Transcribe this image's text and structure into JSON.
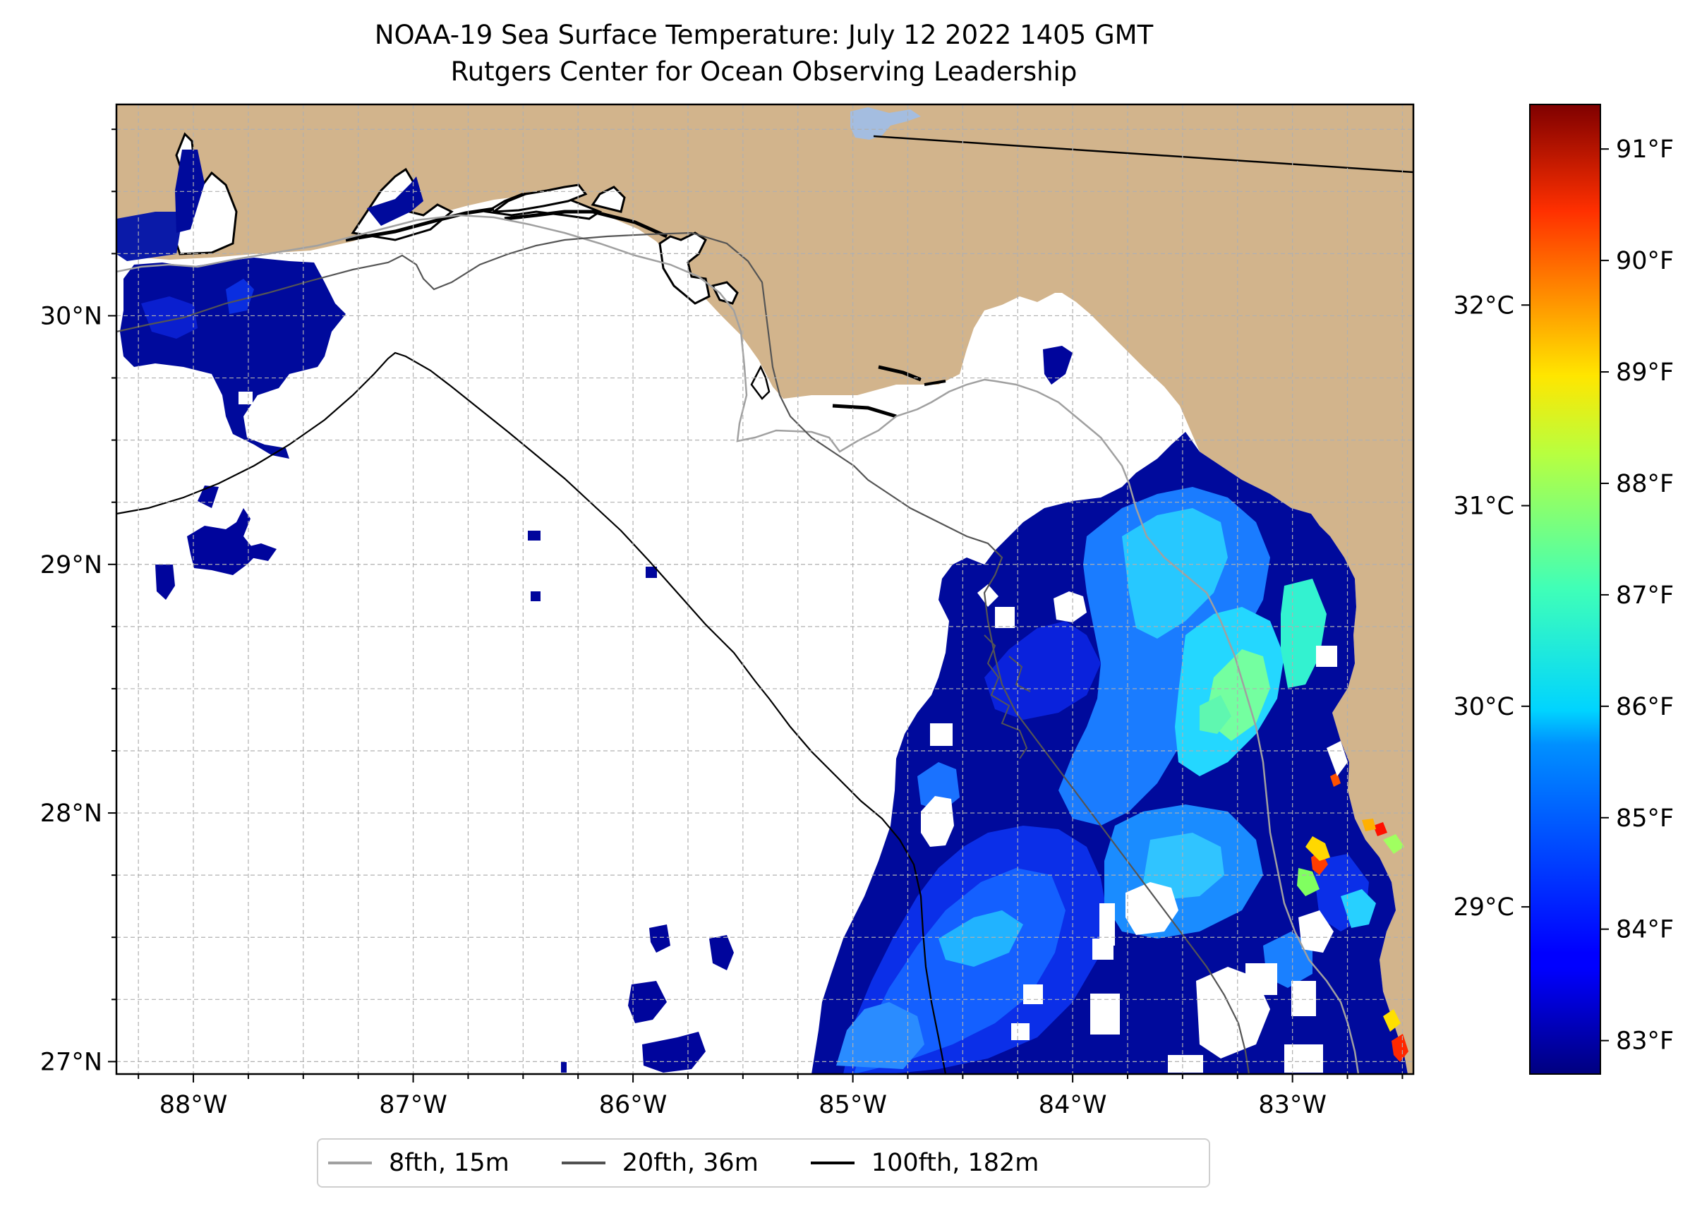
{
  "title": {
    "line1": "NOAA-19 Sea Surface Temperature: July 12 2022 1405 GMT",
    "line2": "Rutgers Center for Ocean Observing Leadership"
  },
  "map": {
    "lon_range": [
      -88.35,
      -82.45
    ],
    "lat_range": [
      26.95,
      30.85
    ],
    "lon_ticks": [
      {
        "value": -88,
        "label": "88°W"
      },
      {
        "value": -87,
        "label": "87°W"
      },
      {
        "value": -86,
        "label": "86°W"
      },
      {
        "value": -85,
        "label": "85°W"
      },
      {
        "value": -84,
        "label": "84°W"
      },
      {
        "value": -83,
        "label": "83°W"
      }
    ],
    "lat_ticks": [
      {
        "value": 30,
        "label": "30°N"
      },
      {
        "value": 29,
        "label": "29°N"
      },
      {
        "value": 28,
        "label": "28°N"
      },
      {
        "value": 27,
        "label": "27°N"
      }
    ],
    "colors": {
      "land": "#d2b48c",
      "ocean_no_data": "#ffffff",
      "coastline": "#000000",
      "lake": "#a4bde0",
      "gridline": "#b0b0b0"
    }
  },
  "colorbar": {
    "celsius_ticks": [
      {
        "value": 32,
        "label": "32°C"
      },
      {
        "value": 31,
        "label": "31°C"
      },
      {
        "value": 30,
        "label": "30°C"
      },
      {
        "value": 29,
        "label": "29°C"
      }
    ],
    "fahrenheit_ticks": [
      {
        "value": 91,
        "label": "91°F"
      },
      {
        "value": 90,
        "label": "90°F"
      },
      {
        "value": 89,
        "label": "89°F"
      },
      {
        "value": 88,
        "label": "88°F"
      },
      {
        "value": 87,
        "label": "87°F"
      },
      {
        "value": 86,
        "label": "86°F"
      },
      {
        "value": 85,
        "label": "85°F"
      },
      {
        "value": 84,
        "label": "84°F"
      },
      {
        "value": 83,
        "label": "83°F"
      }
    ],
    "range_f": [
      82.7,
      91.4
    ],
    "colormap": "jet"
  },
  "legend": {
    "items": [
      {
        "label": "8fth, 15m",
        "color": "#a0a0a0"
      },
      {
        "label": "20fth, 36m",
        "color": "#505050"
      },
      {
        "label": "100fth, 182m",
        "color": "#000000"
      }
    ]
  }
}
